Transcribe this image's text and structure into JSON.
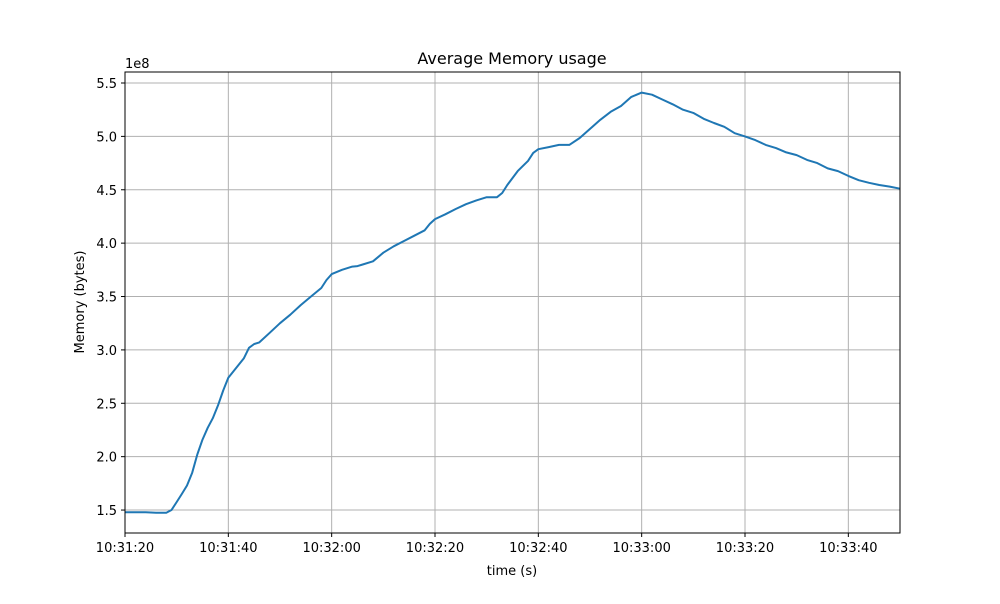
{
  "chart_data": {
    "type": "line",
    "title": "Average Memory usage",
    "xlabel": "time (s)",
    "ylabel": "Memory (bytes)",
    "y_offset_label": "1e8",
    "xlim": [
      "10:31:20",
      "10:33:50"
    ],
    "ylim": [
      128500000,
      560300000
    ],
    "x_ticks": [
      "10:31:20",
      "10:31:40",
      "10:32:00",
      "10:32:20",
      "10:32:40",
      "10:33:00",
      "10:33:20",
      "10:33:40"
    ],
    "y_ticks": [
      "1.5",
      "2.0",
      "2.5",
      "3.0",
      "3.5",
      "4.0",
      "4.5",
      "5.0",
      "5.5"
    ],
    "grid": true,
    "line_color": "#1f77b4",
    "x": [
      "10:31:20",
      "10:31:22",
      "10:31:24",
      "10:31:26",
      "10:31:28",
      "10:31:29",
      "10:31:30",
      "10:31:31",
      "10:31:32",
      "10:31:33",
      "10:31:34",
      "10:31:35",
      "10:31:36",
      "10:31:37",
      "10:31:38",
      "10:31:39",
      "10:31:40",
      "10:31:41",
      "10:31:42",
      "10:31:43",
      "10:31:44",
      "10:31:45",
      "10:31:46",
      "10:31:48",
      "10:31:50",
      "10:31:52",
      "10:31:54",
      "10:31:56",
      "10:31:58",
      "10:31:59",
      "10:32:00",
      "10:32:02",
      "10:32:04",
      "10:32:05",
      "10:32:06",
      "10:32:08",
      "10:32:10",
      "10:32:12",
      "10:32:14",
      "10:32:16",
      "10:32:18",
      "10:32:19",
      "10:32:20",
      "10:32:22",
      "10:32:24",
      "10:32:26",
      "10:32:28",
      "10:32:30",
      "10:32:32",
      "10:32:33",
      "10:32:34",
      "10:32:36",
      "10:32:38",
      "10:32:39",
      "10:32:40",
      "10:32:42",
      "10:32:44",
      "10:32:46",
      "10:32:48",
      "10:32:50",
      "10:32:52",
      "10:32:54",
      "10:32:56",
      "10:32:58",
      "10:33:00",
      "10:33:02",
      "10:33:04",
      "10:33:06",
      "10:33:08",
      "10:33:10",
      "10:33:12",
      "10:33:14",
      "10:33:16",
      "10:33:18",
      "10:33:20",
      "10:33:22",
      "10:33:24",
      "10:33:26",
      "10:33:28",
      "10:33:30",
      "10:33:32",
      "10:33:34",
      "10:33:36",
      "10:33:38",
      "10:33:40",
      "10:33:42",
      "10:33:44",
      "10:33:46",
      "10:33:48",
      "10:33:50"
    ],
    "values": [
      148000000,
      148000000,
      148000000,
      147500000,
      147500000,
      150000000,
      157500000,
      165000000,
      173000000,
      185000000,
      202000000,
      216000000,
      227000000,
      236000000,
      248000000,
      262000000,
      274000000,
      280000000,
      286000000,
      292000000,
      302000000,
      305500000,
      307000000,
      316000000,
      325000000,
      333000000,
      342000000,
      350000000,
      358000000,
      365500000,
      371000000,
      375000000,
      378000000,
      378500000,
      380000000,
      383000000,
      391000000,
      397000000,
      402000000,
      407000000,
      412000000,
      418000000,
      422500000,
      427000000,
      432000000,
      436500000,
      440000000,
      443000000,
      443000000,
      447000000,
      454500000,
      467500000,
      477000000,
      484500000,
      488000000,
      490000000,
      492000000,
      492000000,
      498500000,
      507000000,
      515500000,
      523000000,
      528500000,
      537000000,
      541000000,
      539000000,
      534500000,
      530000000,
      525000000,
      522000000,
      516500000,
      512500000,
      509000000,
      503000000,
      500000000,
      496500000,
      492000000,
      489000000,
      485000000,
      482500000,
      478000000,
      475000000,
      470000000,
      467500000,
      463000000,
      459000000,
      456500000,
      454500000,
      453000000,
      451000000
    ]
  }
}
